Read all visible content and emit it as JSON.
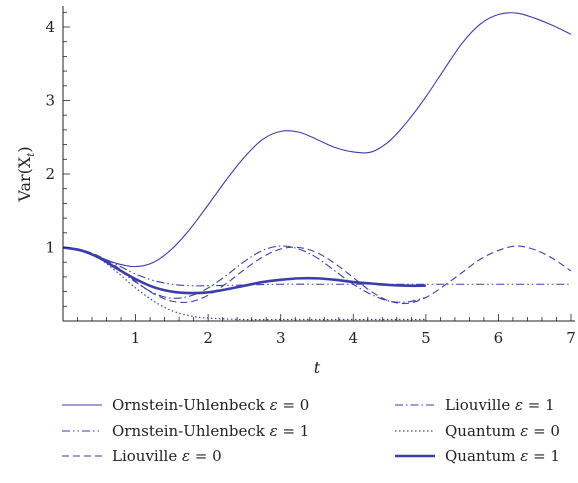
{
  "chart_data": {
    "type": "line",
    "title": "",
    "xlabel": "t",
    "ylabel": "Var(X_t)",
    "xlim": [
      0,
      7
    ],
    "ylim": [
      0,
      4.3
    ],
    "x_ticks": [
      "1",
      "2",
      "3",
      "4",
      "5",
      "6",
      "7"
    ],
    "y_ticks": [
      "1",
      "2",
      "3",
      "4"
    ],
    "grid": false,
    "legend_position": "bottom",
    "color": "#3b3ea8",
    "series": [
      {
        "name": "Ornstein-Uhlenbeck ε = 0",
        "style": "solid-thin",
        "points": [
          [
            0,
            1.0
          ],
          [
            0.25,
            0.96
          ],
          [
            0.5,
            0.87
          ],
          [
            0.75,
            0.78
          ],
          [
            1.0,
            0.74
          ],
          [
            1.25,
            0.8
          ],
          [
            1.5,
            0.98
          ],
          [
            1.75,
            1.25
          ],
          [
            2.0,
            1.58
          ],
          [
            2.25,
            1.92
          ],
          [
            2.5,
            2.23
          ],
          [
            2.75,
            2.47
          ],
          [
            3.0,
            2.58
          ],
          [
            3.25,
            2.57
          ],
          [
            3.5,
            2.47
          ],
          [
            3.75,
            2.36
          ],
          [
            4.0,
            2.3
          ],
          [
            4.25,
            2.3
          ],
          [
            4.5,
            2.45
          ],
          [
            4.75,
            2.72
          ],
          [
            5.0,
            3.05
          ],
          [
            5.25,
            3.42
          ],
          [
            5.5,
            3.78
          ],
          [
            5.75,
            4.04
          ],
          [
            6.0,
            4.17
          ],
          [
            6.25,
            4.19
          ],
          [
            6.5,
            4.12
          ],
          [
            6.75,
            4.02
          ],
          [
            7.0,
            3.9
          ]
        ]
      },
      {
        "name": "Ornstein-Uhlenbeck ε = 1",
        "style": "dash-dot-dot",
        "points": [
          [
            0,
            1.0
          ],
          [
            0.25,
            0.96
          ],
          [
            0.5,
            0.87
          ],
          [
            0.75,
            0.76
          ],
          [
            1.0,
            0.64
          ],
          [
            1.25,
            0.55
          ],
          [
            1.5,
            0.5
          ],
          [
            1.75,
            0.48
          ],
          [
            2.0,
            0.48
          ],
          [
            2.5,
            0.49
          ],
          [
            3.0,
            0.5
          ],
          [
            3.5,
            0.5
          ],
          [
            4.0,
            0.5
          ],
          [
            5.0,
            0.5
          ],
          [
            6.0,
            0.5
          ],
          [
            7.0,
            0.5
          ]
        ]
      },
      {
        "name": "Liouville ε = 0",
        "style": "dashed",
        "points": [
          [
            0,
            1.0
          ],
          [
            0.25,
            0.97
          ],
          [
            0.5,
            0.88
          ],
          [
            0.75,
            0.73
          ],
          [
            1.0,
            0.54
          ],
          [
            1.25,
            0.37
          ],
          [
            1.5,
            0.27
          ],
          [
            1.75,
            0.26
          ],
          [
            2.0,
            0.35
          ],
          [
            2.25,
            0.51
          ],
          [
            2.5,
            0.7
          ],
          [
            2.75,
            0.87
          ],
          [
            3.0,
            0.98
          ],
          [
            3.25,
            1.0
          ],
          [
            3.5,
            0.93
          ],
          [
            3.75,
            0.78
          ],
          [
            4.0,
            0.59
          ],
          [
            4.25,
            0.4
          ],
          [
            4.5,
            0.27
          ],
          [
            4.75,
            0.24
          ],
          [
            5.0,
            0.32
          ],
          [
            5.25,
            0.48
          ],
          [
            5.5,
            0.66
          ],
          [
            5.75,
            0.84
          ],
          [
            6.0,
            0.96
          ],
          [
            6.25,
            1.02
          ],
          [
            6.5,
            0.97
          ],
          [
            6.75,
            0.85
          ],
          [
            7.0,
            0.68
          ]
        ]
      },
      {
        "name": "Liouville ε = 1",
        "style": "dash-dot",
        "points": [
          [
            0,
            1.0
          ],
          [
            0.25,
            0.97
          ],
          [
            0.5,
            0.87
          ],
          [
            0.75,
            0.71
          ],
          [
            1.0,
            0.53
          ],
          [
            1.25,
            0.38
          ],
          [
            1.5,
            0.31
          ],
          [
            1.75,
            0.34
          ],
          [
            2.0,
            0.45
          ],
          [
            2.25,
            0.62
          ],
          [
            2.5,
            0.81
          ],
          [
            2.75,
            0.96
          ],
          [
            3.0,
            1.02
          ],
          [
            3.25,
            0.98
          ],
          [
            3.5,
            0.86
          ],
          [
            3.75,
            0.68
          ],
          [
            4.0,
            0.5
          ],
          [
            4.25,
            0.36
          ],
          [
            4.5,
            0.27
          ],
          [
            4.75,
            0.26
          ],
          [
            5.0,
            0.32
          ]
        ]
      },
      {
        "name": "Quantum ε = 0",
        "style": "dotted",
        "points": [
          [
            0,
            1.0
          ],
          [
            0.25,
            0.96
          ],
          [
            0.5,
            0.85
          ],
          [
            0.75,
            0.66
          ],
          [
            1.0,
            0.45
          ],
          [
            1.25,
            0.27
          ],
          [
            1.5,
            0.14
          ],
          [
            1.75,
            0.07
          ],
          [
            2.0,
            0.04
          ],
          [
            2.5,
            0.02
          ],
          [
            3.0,
            0.02
          ],
          [
            3.5,
            0.02
          ],
          [
            4.0,
            0.02
          ],
          [
            4.5,
            0.02
          ],
          [
            5.0,
            0.02
          ]
        ]
      },
      {
        "name": "Quantum ε = 1",
        "style": "solid-thick",
        "points": [
          [
            0,
            1.0
          ],
          [
            0.25,
            0.96
          ],
          [
            0.5,
            0.86
          ],
          [
            0.75,
            0.71
          ],
          [
            1.0,
            0.57
          ],
          [
            1.25,
            0.46
          ],
          [
            1.5,
            0.4
          ],
          [
            1.75,
            0.38
          ],
          [
            2.0,
            0.39
          ],
          [
            2.25,
            0.43
          ],
          [
            2.5,
            0.48
          ],
          [
            2.75,
            0.53
          ],
          [
            3.0,
            0.56
          ],
          [
            3.25,
            0.58
          ],
          [
            3.5,
            0.58
          ],
          [
            3.75,
            0.56
          ],
          [
            4.0,
            0.53
          ],
          [
            4.25,
            0.51
          ],
          [
            4.5,
            0.49
          ],
          [
            4.75,
            0.48
          ],
          [
            5.0,
            0.48
          ]
        ]
      }
    ]
  }
}
